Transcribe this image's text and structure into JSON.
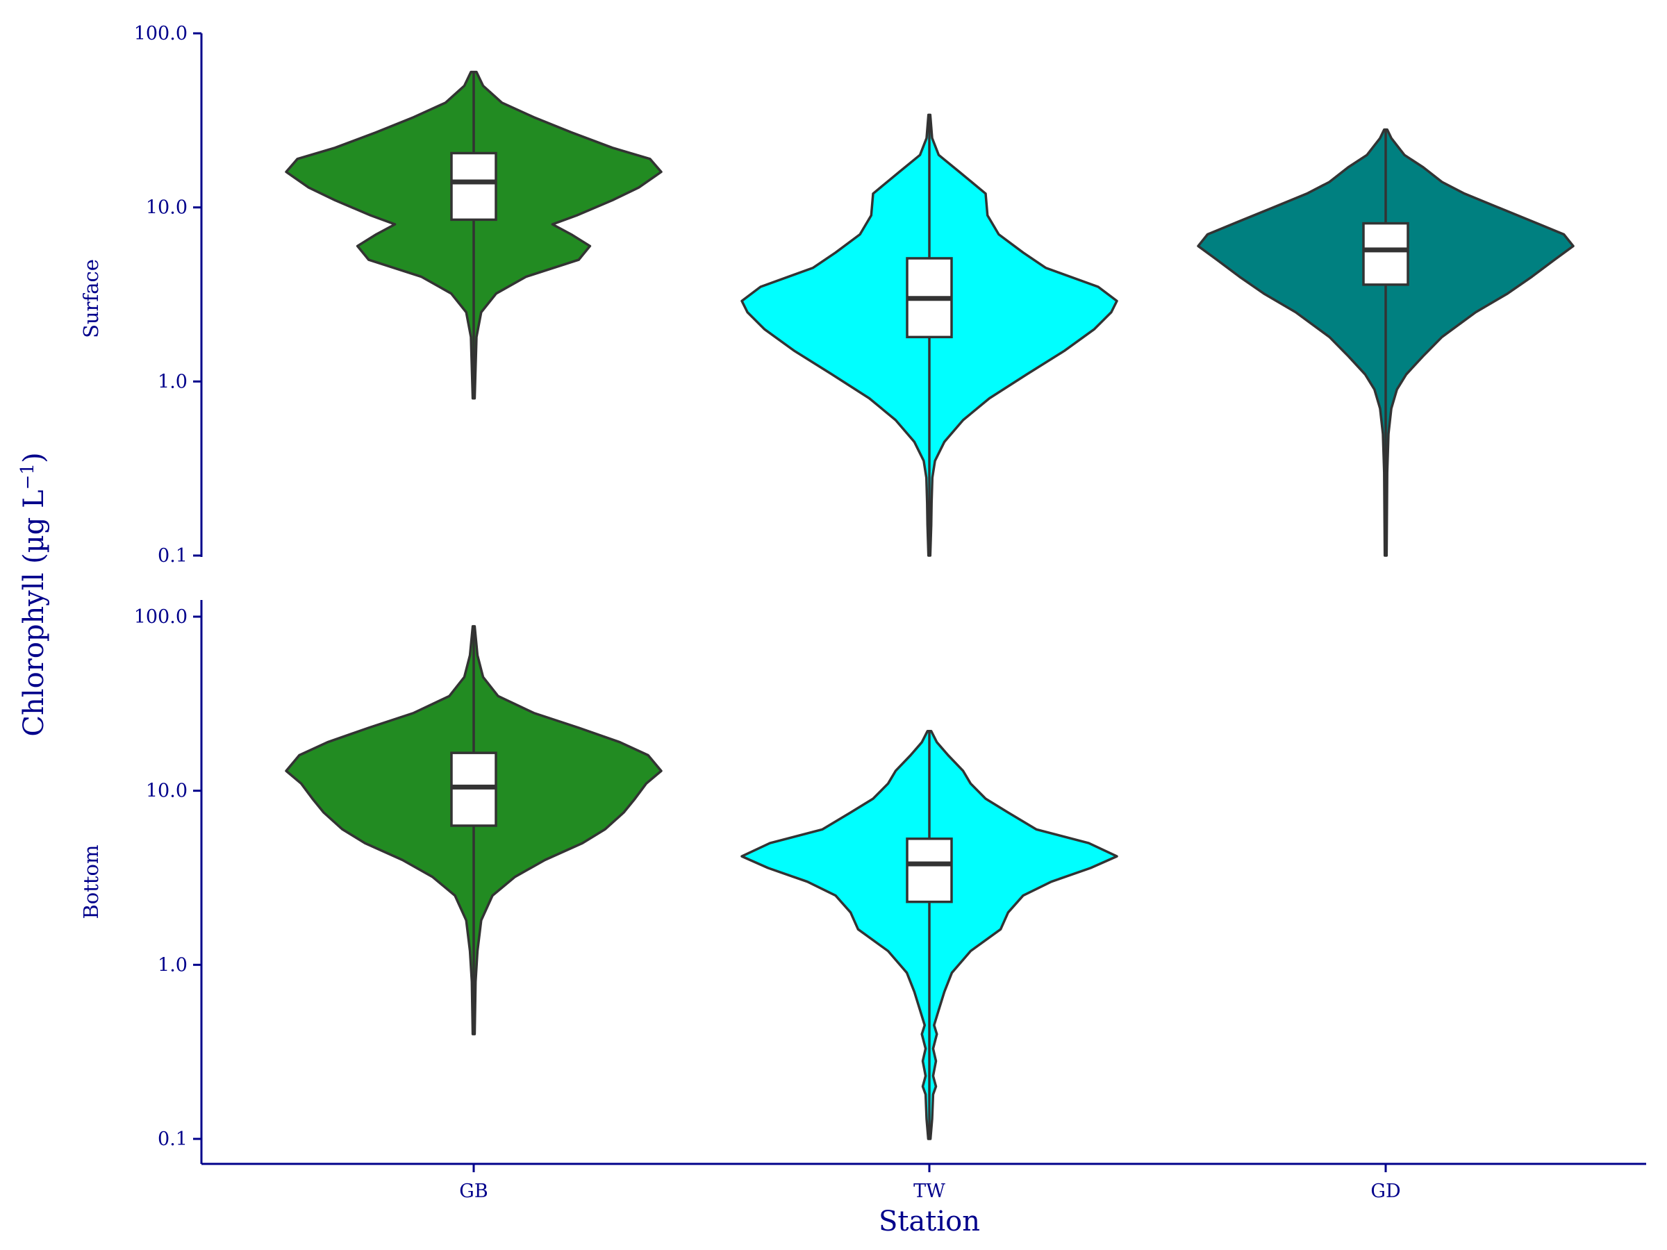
{
  "chart_data": {
    "type": "violin",
    "xlabel": "Station",
    "ylabel": "Chlorophyll (µg L",
    "ylabel_superscript": "−1",
    "ylabel_close": ")",
    "yscale": "log10",
    "ylim": [
      0.1,
      100
    ],
    "y_ticks": [
      0.1,
      1,
      10,
      100
    ],
    "y_tick_labels": [
      "0.1",
      "1.0",
      "10.0",
      "100.0"
    ],
    "categories": [
      "GB",
      "TW",
      "GD"
    ],
    "colors": {
      "GB": "#228B22",
      "TW": "#00FFFF",
      "GD": "#008080"
    },
    "facets": [
      {
        "label": "Surface",
        "groups": [
          {
            "station": "GB",
            "min": 0.8,
            "max": 60,
            "q1": 8.5,
            "median": 14,
            "q3": 20.5,
            "density": [
              [
                0.8,
                0.005
              ],
              [
                1.2,
                0.01
              ],
              [
                1.8,
                0.015
              ],
              [
                2.5,
                0.04
              ],
              [
                3.2,
                0.12
              ],
              [
                4,
                0.28
              ],
              [
                5,
                0.56
              ],
              [
                6,
                0.62
              ],
              [
                7,
                0.52
              ],
              [
                8,
                0.42
              ],
              [
                9,
                0.55
              ],
              [
                11,
                0.74
              ],
              [
                13,
                0.88
              ],
              [
                16,
                1.0
              ],
              [
                19,
                0.94
              ],
              [
                22,
                0.74
              ],
              [
                27,
                0.52
              ],
              [
                33,
                0.32
              ],
              [
                40,
                0.15
              ],
              [
                50,
                0.05
              ],
              [
                60,
                0.015
              ]
            ]
          },
          {
            "station": "TW",
            "min": 0.1,
            "max": 34,
            "q1": 1.8,
            "median": 3.0,
            "q3": 5.1,
            "density": [
              [
                0.1,
                0.005
              ],
              [
                0.15,
                0.01
              ],
              [
                0.2,
                0.012
              ],
              [
                0.28,
                0.016
              ],
              [
                0.35,
                0.03
              ],
              [
                0.45,
                0.08
              ],
              [
                0.6,
                0.18
              ],
              [
                0.8,
                0.32
              ],
              [
                1.1,
                0.52
              ],
              [
                1.5,
                0.72
              ],
              [
                2,
                0.88
              ],
              [
                2.5,
                0.97
              ],
              [
                2.9,
                1.0
              ],
              [
                3.5,
                0.9
              ],
              [
                4.5,
                0.62
              ],
              [
                5.5,
                0.5
              ],
              [
                7,
                0.37
              ],
              [
                9,
                0.31
              ],
              [
                12,
                0.3
              ],
              [
                16,
                0.16
              ],
              [
                20,
                0.05
              ],
              [
                25,
                0.015
              ],
              [
                34,
                0.005
              ]
            ]
          },
          {
            "station": "GD",
            "min": 0.1,
            "max": 28,
            "q1": 3.6,
            "median": 5.7,
            "q3": 8.1,
            "density": [
              [
                0.1,
                0.005
              ],
              [
                0.3,
                0.008
              ],
              [
                0.5,
                0.015
              ],
              [
                0.7,
                0.03
              ],
              [
                0.9,
                0.06
              ],
              [
                1.1,
                0.11
              ],
              [
                1.4,
                0.2
              ],
              [
                1.8,
                0.3
              ],
              [
                2.5,
                0.48
              ],
              [
                3.2,
                0.65
              ],
              [
                4,
                0.78
              ],
              [
                5,
                0.9
              ],
              [
                6,
                1.0
              ],
              [
                7,
                0.95
              ],
              [
                8,
                0.82
              ],
              [
                10,
                0.6
              ],
              [
                12,
                0.42
              ],
              [
                14,
                0.3
              ],
              [
                17,
                0.2
              ],
              [
                20,
                0.1
              ],
              [
                25,
                0.03
              ],
              [
                28,
                0.008
              ]
            ]
          }
        ]
      },
      {
        "label": "Bottom",
        "groups": [
          {
            "station": "GB",
            "min": 0.4,
            "max": 88,
            "q1": 6.3,
            "median": 10.5,
            "q3": 16.5,
            "density": [
              [
                0.4,
                0.005
              ],
              [
                0.8,
                0.01
              ],
              [
                1.2,
                0.02
              ],
              [
                1.8,
                0.04
              ],
              [
                2.5,
                0.1
              ],
              [
                3.2,
                0.22
              ],
              [
                4,
                0.38
              ],
              [
                5,
                0.58
              ],
              [
                6,
                0.7
              ],
              [
                7.5,
                0.8
              ],
              [
                9,
                0.86
              ],
              [
                11,
                0.92
              ],
              [
                13,
                1.0
              ],
              [
                16,
                0.93
              ],
              [
                19,
                0.78
              ],
              [
                23,
                0.56
              ],
              [
                28,
                0.32
              ],
              [
                35,
                0.13
              ],
              [
                45,
                0.05
              ],
              [
                60,
                0.02
              ],
              [
                88,
                0.005
              ]
            ]
          },
          {
            "station": "TW",
            "min": 0.1,
            "max": 22,
            "q1": 2.3,
            "median": 3.8,
            "q3": 5.3,
            "density": [
              [
                0.1,
                0.006
              ],
              [
                0.13,
                0.015
              ],
              [
                0.18,
                0.02
              ],
              [
                0.2,
                0.035
              ],
              [
                0.23,
                0.02
              ],
              [
                0.28,
                0.035
              ],
              [
                0.33,
                0.02
              ],
              [
                0.4,
                0.04
              ],
              [
                0.45,
                0.025
              ],
              [
                0.55,
                0.05
              ],
              [
                0.7,
                0.08
              ],
              [
                0.9,
                0.12
              ],
              [
                1.2,
                0.22
              ],
              [
                1.6,
                0.38
              ],
              [
                2,
                0.42
              ],
              [
                2.5,
                0.5
              ],
              [
                3,
                0.65
              ],
              [
                3.6,
                0.86
              ],
              [
                4.2,
                1.0
              ],
              [
                5,
                0.85
              ],
              [
                6,
                0.57
              ],
              [
                7.5,
                0.42
              ],
              [
                9,
                0.3
              ],
              [
                11,
                0.22
              ],
              [
                13,
                0.18
              ],
              [
                16,
                0.1
              ],
              [
                19,
                0.04
              ],
              [
                22,
                0.01
              ]
            ]
          }
        ]
      }
    ]
  }
}
